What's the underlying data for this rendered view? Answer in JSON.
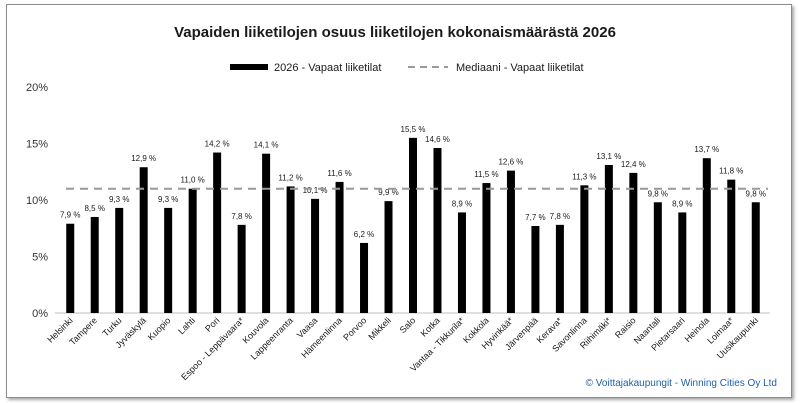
{
  "chart_data": {
    "type": "bar",
    "title": "Vapaiden liiketilojen osuus liiketilojen kokonaismäärästä 2026",
    "categories": [
      "Helsinki",
      "Tampere",
      "Turku",
      "Jyväskylä",
      "Kuopio",
      "Lahti",
      "Pori",
      "Espoo - Leppävaara*",
      "Kouvola",
      "Lappeenranta",
      "Vaasa",
      "Hämeenlinna",
      "Porvoo",
      "Mikkeli",
      "Salo",
      "Kotka",
      "Vantaa - Tikkurila*",
      "Kokkola",
      "Hyvinkää*",
      "Järvenpää",
      "Kerava*",
      "Savonlinna",
      "Riihimäki*",
      "Raisio",
      "Naantali",
      "Pietarsaari",
      "Heinola",
      "Loimaa*",
      "Uusikaupunki"
    ],
    "series": [
      {
        "name": "2026  - Vapaat liiketilat",
        "values": [
          7.9,
          8.5,
          9.3,
          12.9,
          9.3,
          11.0,
          14.2,
          7.8,
          14.1,
          11.2,
          10.1,
          11.6,
          6.2,
          9.9,
          15.5,
          14.6,
          8.9,
          11.5,
          12.6,
          7.7,
          7.8,
          11.3,
          13.1,
          12.4,
          9.8,
          8.9,
          13.7,
          11.8,
          9.8
        ],
        "color": "#000000"
      }
    ],
    "value_labels": [
      "7,9 %",
      "8,5 %",
      "9,3 %",
      "12,9 %",
      "9,3 %",
      "11,0 %",
      "14,2 %",
      "7,8 %",
      "14,1 %",
      "11,2 %",
      "10,1 %",
      "11,6 %",
      "6,2 %",
      "9,9 %",
      "15,5 %",
      "14,6 %",
      "8,9 %",
      "11,5 %",
      "12,6 %",
      "7,7 %",
      "7,8 %",
      "11,3 %",
      "13,1 %",
      "12,4 %",
      "9,8 %",
      "8,9 %",
      "13,7 %",
      "11,8 %",
      "9,8 %"
    ],
    "reference_line": {
      "name": "Mediaani  - Vapaat liiketilat",
      "value": 11.0,
      "color": "#999999",
      "style": "dashed"
    },
    "y_ticks": [
      "0%",
      "5%",
      "10%",
      "15%",
      "20%"
    ],
    "ylim": [
      0,
      20
    ],
    "grid": false,
    "legend_position": "top"
  },
  "copyright": "© Voittajakaupungit - Winning Cities Oy Ltd"
}
